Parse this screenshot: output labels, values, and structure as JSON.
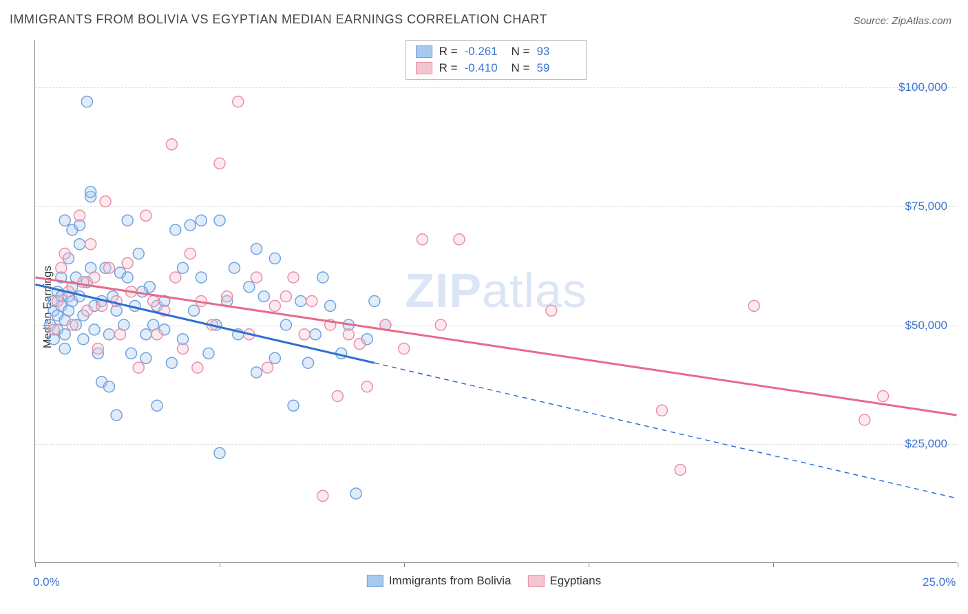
{
  "title": "IMMIGRANTS FROM BOLIVIA VS EGYPTIAN MEDIAN EARNINGS CORRELATION CHART",
  "source": "Source: ZipAtlas.com",
  "ylabel": "Median Earnings",
  "watermark_bold": "ZIP",
  "watermark_rest": "atlas",
  "chart": {
    "type": "scatter",
    "xlim": [
      0,
      25
    ],
    "ylim": [
      0,
      110000
    ],
    "x_tick_positions": [
      0,
      5,
      10,
      15,
      20,
      25
    ],
    "x_tick_labels_shown": {
      "0": "0.0%",
      "25": "25.0%"
    },
    "y_grid_values": [
      25000,
      50000,
      75000,
      100000
    ],
    "y_tick_labels": [
      "$25,000",
      "$50,000",
      "$75,000",
      "$100,000"
    ],
    "background_color": "#ffffff",
    "grid_color": "#d8d8d8",
    "axis_color": "#888888",
    "tick_label_color": "#3f75d1",
    "tick_label_fontsize": 17,
    "title_fontsize": 18,
    "title_color": "#444444",
    "ylabel_fontsize": 16,
    "marker_radius": 8,
    "marker_stroke_width": 1.5,
    "marker_fill_opacity": 0.35,
    "trend_line_width": 3
  },
  "series": [
    {
      "key": "bolivia",
      "label": "Immigrants from Bolivia",
      "color_fill": "#a8c8ef",
      "color_stroke": "#6fa3e0",
      "line_color": "#2e6fd1",
      "R": "-0.261",
      "N": "93",
      "trend": {
        "x1": 0,
        "y1": 58500,
        "x2": 9.2,
        "y2": 42000,
        "extend_to_x": 25,
        "extend_to_y": 13500
      },
      "points": [
        [
          0.4,
          50000
        ],
        [
          0.5,
          53000
        ],
        [
          0.5,
          55000
        ],
        [
          0.5,
          47000
        ],
        [
          0.6,
          52000
        ],
        [
          0.6,
          57000
        ],
        [
          0.6,
          49000
        ],
        [
          0.7,
          56000
        ],
        [
          0.7,
          60000
        ],
        [
          0.7,
          54000
        ],
        [
          0.8,
          51000
        ],
        [
          0.8,
          72000
        ],
        [
          0.8,
          45000
        ],
        [
          0.8,
          48000
        ],
        [
          0.9,
          64000
        ],
        [
          0.9,
          56000
        ],
        [
          0.9,
          53000
        ],
        [
          1.0,
          70000
        ],
        [
          1.0,
          58000
        ],
        [
          1.0,
          55000
        ],
        [
          1.1,
          60000
        ],
        [
          1.1,
          50000
        ],
        [
          1.2,
          67000
        ],
        [
          1.2,
          71000
        ],
        [
          1.2,
          56000
        ],
        [
          1.3,
          47000
        ],
        [
          1.3,
          52000
        ],
        [
          1.4,
          97000
        ],
        [
          1.4,
          59000
        ],
        [
          1.5,
          77000
        ],
        [
          1.5,
          78000
        ],
        [
          1.5,
          62000
        ],
        [
          1.6,
          54000
        ],
        [
          1.6,
          49000
        ],
        [
          1.7,
          44000
        ],
        [
          1.8,
          38000
        ],
        [
          1.8,
          55000
        ],
        [
          1.9,
          62000
        ],
        [
          2.0,
          37000
        ],
        [
          2.0,
          48000
        ],
        [
          2.1,
          56000
        ],
        [
          2.2,
          31000
        ],
        [
          2.2,
          53000
        ],
        [
          2.3,
          61000
        ],
        [
          2.4,
          50000
        ],
        [
          2.5,
          72000
        ],
        [
          2.5,
          60000
        ],
        [
          2.6,
          44000
        ],
        [
          2.7,
          54000
        ],
        [
          2.8,
          65000
        ],
        [
          2.9,
          57000
        ],
        [
          3.0,
          48000
        ],
        [
          3.0,
          43000
        ],
        [
          3.1,
          58000
        ],
        [
          3.2,
          50000
        ],
        [
          3.3,
          33000
        ],
        [
          3.3,
          54000
        ],
        [
          3.5,
          49000
        ],
        [
          3.5,
          55000
        ],
        [
          3.7,
          42000
        ],
        [
          3.8,
          70000
        ],
        [
          4.0,
          62000
        ],
        [
          4.0,
          47000
        ],
        [
          4.2,
          71000
        ],
        [
          4.3,
          53000
        ],
        [
          4.5,
          72000
        ],
        [
          4.5,
          60000
        ],
        [
          4.7,
          44000
        ],
        [
          4.9,
          50000
        ],
        [
          5.0,
          23000
        ],
        [
          5.0,
          72000
        ],
        [
          5.2,
          55000
        ],
        [
          5.4,
          62000
        ],
        [
          5.5,
          48000
        ],
        [
          5.8,
          58000
        ],
        [
          6.0,
          66000
        ],
        [
          6.0,
          40000
        ],
        [
          6.2,
          56000
        ],
        [
          6.5,
          43000
        ],
        [
          6.5,
          64000
        ],
        [
          6.8,
          50000
        ],
        [
          7.0,
          33000
        ],
        [
          7.2,
          55000
        ],
        [
          7.4,
          42000
        ],
        [
          7.6,
          48000
        ],
        [
          7.8,
          60000
        ],
        [
          8.0,
          54000
        ],
        [
          8.3,
          44000
        ],
        [
          8.5,
          50000
        ],
        [
          8.7,
          14500
        ],
        [
          9.0,
          47000
        ],
        [
          9.2,
          55000
        ],
        [
          9.5,
          50000
        ]
      ]
    },
    {
      "key": "egyptians",
      "label": "Egyptians",
      "color_fill": "#f5c4d1",
      "color_stroke": "#e98fa8",
      "line_color": "#e76a8a",
      "R": "-0.410",
      "N": "59",
      "trend": {
        "x1": 0,
        "y1": 60000,
        "x2": 25,
        "y2": 31000
      },
      "points": [
        [
          0.5,
          49000
        ],
        [
          0.6,
          55000
        ],
        [
          0.7,
          62000
        ],
        [
          0.8,
          65000
        ],
        [
          0.9,
          57000
        ],
        [
          1.0,
          50000
        ],
        [
          1.2,
          73000
        ],
        [
          1.3,
          59000
        ],
        [
          1.4,
          53000
        ],
        [
          1.5,
          67000
        ],
        [
          1.6,
          60000
        ],
        [
          1.7,
          45000
        ],
        [
          1.8,
          54000
        ],
        [
          1.9,
          76000
        ],
        [
          2.0,
          62000
        ],
        [
          2.2,
          55000
        ],
        [
          2.3,
          48000
        ],
        [
          2.5,
          63000
        ],
        [
          2.6,
          57000
        ],
        [
          2.8,
          41000
        ],
        [
          3.0,
          73000
        ],
        [
          3.2,
          55000
        ],
        [
          3.3,
          48000
        ],
        [
          3.5,
          53000
        ],
        [
          3.7,
          88000
        ],
        [
          3.8,
          60000
        ],
        [
          4.0,
          45000
        ],
        [
          4.2,
          65000
        ],
        [
          4.4,
          41000
        ],
        [
          4.5,
          55000
        ],
        [
          4.8,
          50000
        ],
        [
          5.0,
          84000
        ],
        [
          5.2,
          56000
        ],
        [
          5.5,
          97000
        ],
        [
          5.8,
          48000
        ],
        [
          6.0,
          60000
        ],
        [
          6.3,
          41000
        ],
        [
          6.5,
          54000
        ],
        [
          6.8,
          56000
        ],
        [
          7.0,
          60000
        ],
        [
          7.3,
          48000
        ],
        [
          7.5,
          55000
        ],
        [
          7.8,
          14000
        ],
        [
          8.0,
          50000
        ],
        [
          8.2,
          35000
        ],
        [
          8.5,
          48000
        ],
        [
          8.8,
          46000
        ],
        [
          9.0,
          37000
        ],
        [
          9.5,
          50000
        ],
        [
          10.0,
          45000
        ],
        [
          10.5,
          68000
        ],
        [
          11.0,
          50000
        ],
        [
          11.5,
          68000
        ],
        [
          14.0,
          53000
        ],
        [
          17.0,
          32000
        ],
        [
          17.5,
          19500
        ],
        [
          19.5,
          54000
        ],
        [
          22.5,
          30000
        ],
        [
          23.0,
          35000
        ]
      ]
    }
  ],
  "legend_top": {
    "R_label": "R =",
    "N_label": "N ="
  }
}
